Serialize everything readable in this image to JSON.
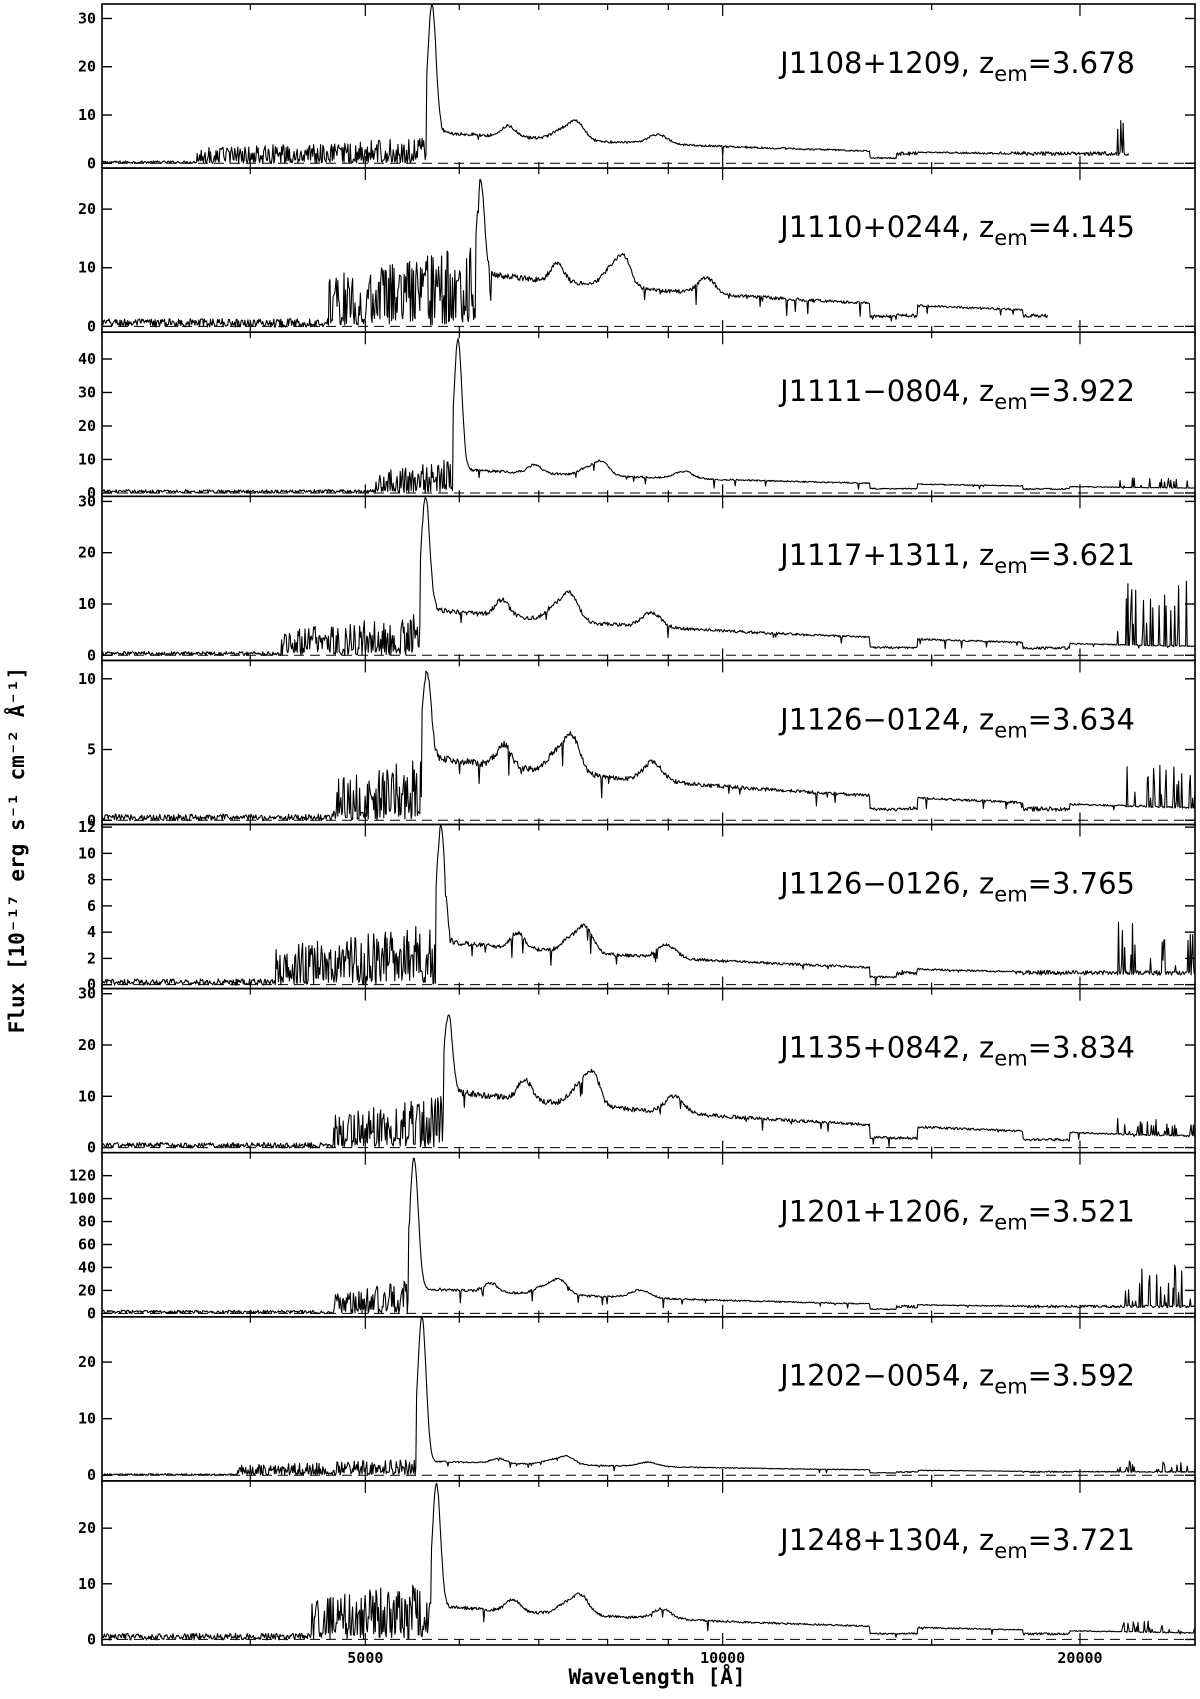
{
  "chart_data": {
    "type": "line",
    "xlabel": "Wavelength [Å]",
    "ylabel": "Flux [10⁻¹⁷ erg s⁻¹ cm⁻² Å⁻¹]",
    "x_scale": "log",
    "xlim": [
      3000,
      25000
    ],
    "x_ticks": [
      {
        "value": 5000,
        "label": "5000"
      },
      {
        "value": 10000,
        "label": "10000"
      },
      {
        "value": 20000,
        "label": "20000"
      }
    ],
    "panels": [
      {
        "name": "J1108+1209",
        "z_sub": "em",
        "z_value": "=3.678",
        "ylim": [
          -1,
          33
        ],
        "yticks": [
          {
            "v": 0,
            "l": "0"
          },
          {
            "v": 10,
            "l": "10"
          },
          {
            "v": 20,
            "l": "20"
          },
          {
            "v": 30,
            "l": "30"
          }
        ],
        "lya": 5690,
        "lya_peak": 33,
        "f_blue": 4.5,
        "f_red": 6.5,
        "f_ir": 2.0,
        "lls": 3600,
        "noisy_blue_from": 3900,
        "ir_end": 22000,
        "ir_spike": 8
      },
      {
        "name": "J1110+0244",
        "z_sub": "em",
        "z_value": "=4.145",
        "ylim": [
          -1,
          27
        ],
        "yticks": [
          {
            "v": 0,
            "l": "0"
          },
          {
            "v": 10,
            "l": "10"
          },
          {
            "v": 20,
            "l": "20"
          }
        ],
        "lya": 6255,
        "lya_peak": 25,
        "f_blue": 12,
        "f_red": 9,
        "f_ir": 1.8,
        "lls": 4650,
        "noisy_blue_from": 4650,
        "ir_end": 18800,
        "ir_spike": 0
      },
      {
        "name": "J1111−0804",
        "z_sub": "em",
        "z_value": "=3.922",
        "ylim": [
          -1,
          48
        ],
        "yticks": [
          {
            "v": 0,
            "l": "0"
          },
          {
            "v": 10,
            "l": "10"
          },
          {
            "v": 20,
            "l": "20"
          },
          {
            "v": 30,
            "l": "30"
          },
          {
            "v": 40,
            "l": "40"
          }
        ],
        "lya": 5985,
        "lya_peak": 46,
        "f_blue": 9,
        "f_red": 7,
        "f_ir": 1.2,
        "lls": 5100,
        "noisy_blue_from": 5100,
        "ir_end": 25000,
        "ir_spike": 3
      },
      {
        "name": "J1117+1311",
        "z_sub": "em",
        "z_value": "=3.621",
        "ylim": [
          -1,
          31
        ],
        "yticks": [
          {
            "v": 0,
            "l": "0"
          },
          {
            "v": 10,
            "l": "10"
          },
          {
            "v": 20,
            "l": "20"
          },
          {
            "v": 30,
            "l": "30"
          }
        ],
        "lya": 5620,
        "lya_peak": 31,
        "f_blue": 7,
        "f_red": 9,
        "f_ir": 1.4,
        "lls": 4250,
        "noisy_blue_from": 4250,
        "ir_end": 25000,
        "ir_spike": 16
      },
      {
        "name": "J1126−0124",
        "z_sub": "em",
        "z_value": "=3.634",
        "ylim": [
          -0.3,
          11.3
        ],
        "yticks": [
          {
            "v": 0,
            "l": "0"
          },
          {
            "v": 5,
            "l": "5"
          },
          {
            "v": 10,
            "l": "10"
          }
        ],
        "lya": 5635,
        "lya_peak": 10.5,
        "f_blue": 4,
        "f_red": 4.5,
        "f_ir": 0.8,
        "lls": 4700,
        "noisy_blue_from": 4700,
        "ir_end": 25000,
        "ir_spike": 3
      },
      {
        "name": "J1126−0126",
        "z_sub": "em",
        "z_value": "=3.765",
        "ylim": [
          -0.3,
          12.2
        ],
        "yticks": [
          {
            "v": 0,
            "l": "0"
          },
          {
            "v": 2,
            "l": "2"
          },
          {
            "v": 4,
            "l": "4"
          },
          {
            "v": 6,
            "l": "6"
          },
          {
            "v": 8,
            "l": "8"
          },
          {
            "v": 10,
            "l": "10"
          },
          {
            "v": 12,
            "l": "12"
          }
        ],
        "lya": 5790,
        "lya_peak": 12,
        "f_blue": 4,
        "f_red": 3.3,
        "f_ir": 0.9,
        "lls": 4200,
        "noisy_blue_from": 4200,
        "ir_end": 25000,
        "ir_spike": 4
      },
      {
        "name": "J1135+0842",
        "z_sub": "em",
        "z_value": "=3.834",
        "ylim": [
          -1,
          31
        ],
        "yticks": [
          {
            "v": 0,
            "l": "0"
          },
          {
            "v": 10,
            "l": "10"
          },
          {
            "v": 20,
            "l": "20"
          },
          {
            "v": 30,
            "l": "30"
          }
        ],
        "lya": 5875,
        "lya_peak": 26,
        "f_blue": 9,
        "f_red": 11,
        "f_ir": 1.5,
        "lls": 4700,
        "noisy_blue_from": 4700,
        "ir_end": 25000,
        "ir_spike": 3
      },
      {
        "name": "J1201+1206",
        "z_sub": "em",
        "z_value": "=3.521",
        "ylim": [
          -3,
          140
        ],
        "yticks": [
          {
            "v": 0,
            "l": "0"
          },
          {
            "v": 20,
            "l": "20"
          },
          {
            "v": 40,
            "l": "40"
          },
          {
            "v": 60,
            "l": "60"
          },
          {
            "v": 80,
            "l": "80"
          },
          {
            "v": 100,
            "l": "100"
          },
          {
            "v": 120,
            "l": "120"
          }
        ],
        "lya": 5495,
        "lya_peak": 135,
        "f_blue": 25,
        "f_red": 22,
        "f_ir": 6,
        "lls": 4700,
        "noisy_blue_from": 4700,
        "ir_end": 25000,
        "ir_spike": 40
      },
      {
        "name": "J1202−0054",
        "z_sub": "em",
        "z_value": "=3.592",
        "ylim": [
          -1,
          28
        ],
        "yticks": [
          {
            "v": 0,
            "l": "0"
          },
          {
            "v": 10,
            "l": "10"
          },
          {
            "v": 20,
            "l": "20"
          }
        ],
        "lya": 5580,
        "lya_peak": 28,
        "f_blue": 2.5,
        "f_red": 2.5,
        "f_ir": 0.6,
        "lls": 3900,
        "noisy_blue_from": 4300,
        "ir_end": 25000,
        "ir_spike": 2
      },
      {
        "name": "J1248+1304",
        "z_sub": "em",
        "z_value": "=3.721",
        "ylim": [
          -1,
          28.5
        ],
        "yticks": [
          {
            "v": 0,
            "l": "0"
          },
          {
            "v": 10,
            "l": "10"
          },
          {
            "v": 20,
            "l": "20"
          }
        ],
        "lya": 5740,
        "lya_peak": 28,
        "f_blue": 10,
        "f_red": 6,
        "f_ir": 1.0,
        "lls": 4500,
        "noisy_blue_from": 4500,
        "ir_end": 25000,
        "ir_spike": 2
      }
    ]
  }
}
